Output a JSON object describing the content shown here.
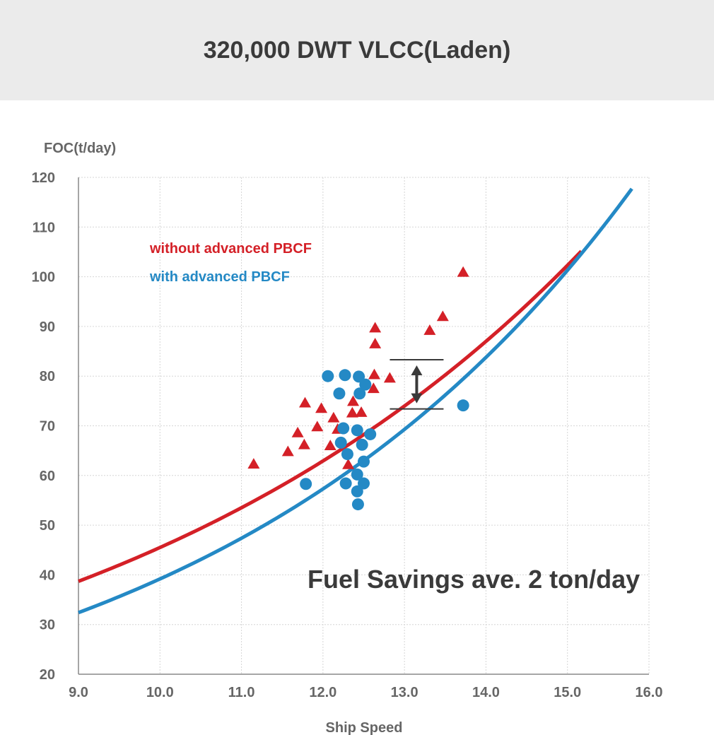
{
  "header": {
    "title": "320,000 DWT VLCC(Laden)"
  },
  "chart_data": {
    "type": "scatter",
    "title": "320,000 DWT VLCC(Laden)",
    "xlabel": "Ship Speed",
    "ylabel": "FOC(t/day)",
    "xlim": [
      9.0,
      16.0
    ],
    "ylim": [
      20,
      120
    ],
    "x_ticks": [
      "9.0",
      "10.0",
      "11.0",
      "12.0",
      "13.0",
      "14.0",
      "15.0",
      "16.0"
    ],
    "y_ticks": [
      "20",
      "30",
      "40",
      "50",
      "60",
      "70",
      "80",
      "90",
      "100",
      "110",
      "120"
    ],
    "grid": true,
    "legend_position": "top-left",
    "annotation": "Fuel Savings ave. 2 ton/day",
    "savings_marker": {
      "x": 13.15,
      "y_high": 83.3,
      "y_low": 73.4
    },
    "series": [
      {
        "name": "without advanced PBCF",
        "color": "#d42027",
        "marker": "triangle",
        "curve": {
          "a": 38.7,
          "b": 0.162,
          "x_start": 9.0,
          "x_end": 15.17
        },
        "points": [
          [
            11.15,
            62.3
          ],
          [
            11.57,
            64.8
          ],
          [
            11.69,
            68.6
          ],
          [
            11.77,
            66.2
          ],
          [
            11.78,
            74.6
          ],
          [
            11.93,
            69.8
          ],
          [
            11.98,
            73.5
          ],
          [
            12.09,
            66.0
          ],
          [
            12.13,
            71.6
          ],
          [
            12.18,
            69.3
          ],
          [
            12.31,
            62.2
          ],
          [
            12.36,
            72.6
          ],
          [
            12.37,
            74.9
          ],
          [
            12.47,
            72.7
          ],
          [
            12.62,
            77.5
          ],
          [
            12.63,
            80.3
          ],
          [
            12.64,
            86.5
          ],
          [
            12.64,
            89.7
          ],
          [
            12.82,
            79.6
          ],
          [
            13.31,
            89.2
          ],
          [
            13.47,
            92.0
          ],
          [
            13.72,
            100.9
          ]
        ]
      },
      {
        "name": "with advanced PBCF",
        "color": "#2489c5",
        "marker": "circle",
        "curve": {
          "a": 32.4,
          "b": 0.19,
          "x_start": 9.0,
          "x_end": 15.79
        },
        "points": [
          [
            11.79,
            58.3
          ],
          [
            12.06,
            80.0
          ],
          [
            12.2,
            76.5
          ],
          [
            12.22,
            66.6
          ],
          [
            12.25,
            69.5
          ],
          [
            12.27,
            80.2
          ],
          [
            12.28,
            58.4
          ],
          [
            12.3,
            64.3
          ],
          [
            12.42,
            69.1
          ],
          [
            12.42,
            60.2
          ],
          [
            12.42,
            56.8
          ],
          [
            12.43,
            54.2
          ],
          [
            12.44,
            79.9
          ],
          [
            12.45,
            76.5
          ],
          [
            12.48,
            66.2
          ],
          [
            12.5,
            62.8
          ],
          [
            12.5,
            58.4
          ],
          [
            12.52,
            78.3
          ],
          [
            12.58,
            68.3
          ],
          [
            13.72,
            74.1
          ]
        ]
      }
    ]
  }
}
